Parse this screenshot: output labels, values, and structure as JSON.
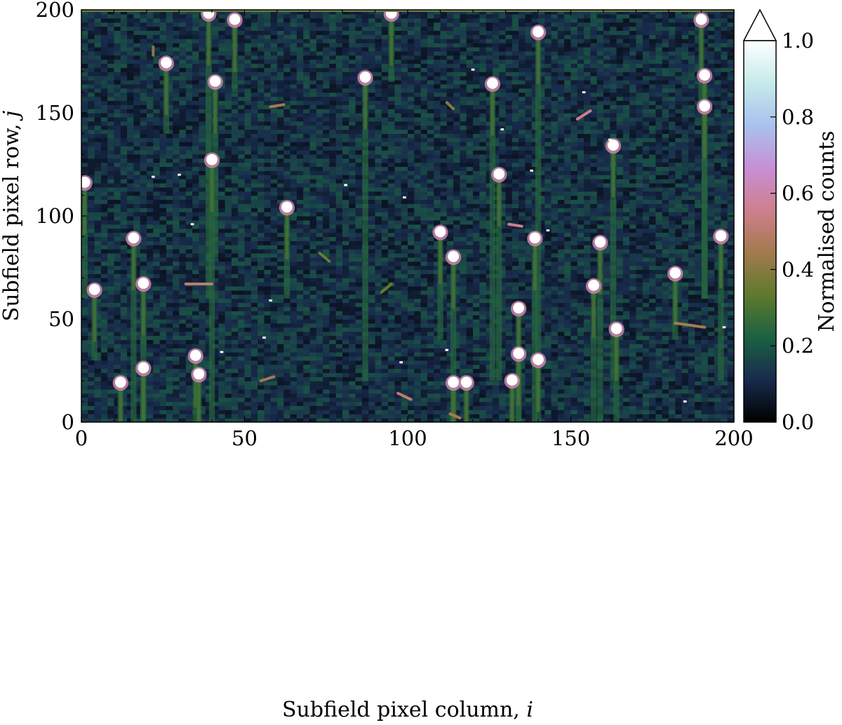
{
  "chart_data": {
    "type": "heatmap",
    "xlabel": "Subfield pixel column, ",
    "xlabel_var": "i",
    "ylabel": "Subfield pixel row, ",
    "ylabel_var": "j",
    "xlim": [
      0,
      200
    ],
    "ylim": [
      0,
      200
    ],
    "x_ticks": [
      0,
      50,
      100,
      150,
      200
    ],
    "y_ticks": [
      0,
      50,
      100,
      150,
      200
    ],
    "x_tick_labels": [
      "0",
      "50",
      "100",
      "150",
      "200"
    ],
    "y_tick_labels": [
      "0",
      "50",
      "100",
      "150",
      "200"
    ],
    "colorbar": {
      "label": "Normalised counts",
      "range": [
        0.0,
        1.0
      ],
      "extend": "max",
      "ticks": [
        0.0,
        0.2,
        0.4,
        0.6,
        0.8,
        1.0
      ],
      "tick_labels": [
        "0.0",
        "0.2",
        "0.4",
        "0.6",
        "0.8",
        "1.0"
      ],
      "colormap": "cubehelix",
      "colormap_stops": [
        "#000000",
        "#182b4c",
        "#1b6142",
        "#5e7a2c",
        "#a27a4d",
        "#cf7f8e",
        "#c78fd6",
        "#a8c2ee",
        "#c6eaea",
        "#ffffff"
      ]
    },
    "background_level": 0.12,
    "sources": [
      {
        "x": 39,
        "y": 198,
        "peak": 1.0,
        "streak_to": 60
      },
      {
        "x": 47,
        "y": 195,
        "peak": 1.0,
        "streak_to": 160
      },
      {
        "x": 95,
        "y": 198,
        "peak": 1.0,
        "streak_to": 165
      },
      {
        "x": 140,
        "y": 189,
        "peak": 1.0,
        "streak_to": 20
      },
      {
        "x": 190,
        "y": 195,
        "peak": 1.0,
        "streak_to": 150
      },
      {
        "x": 26,
        "y": 174,
        "peak": 1.0,
        "streak_to": 140
      },
      {
        "x": 41,
        "y": 165,
        "peak": 1.0,
        "streak_to": 80
      },
      {
        "x": 87,
        "y": 167,
        "peak": 1.0,
        "streak_to": 20
      },
      {
        "x": 126,
        "y": 164,
        "peak": 1.0,
        "streak_to": 20
      },
      {
        "x": 191,
        "y": 168,
        "peak": 1.0,
        "streak_to": 60
      },
      {
        "x": 191,
        "y": 153,
        "peak": 1.0,
        "streak_to": 60
      },
      {
        "x": 163,
        "y": 134,
        "peak": 1.0,
        "streak_to": 20
      },
      {
        "x": 40,
        "y": 127,
        "peak": 1.0,
        "streak_to": 0
      },
      {
        "x": 128,
        "y": 120,
        "peak": 1.0,
        "streak_to": 20
      },
      {
        "x": 1,
        "y": 116,
        "peak": 1.0,
        "streak_to": 60
      },
      {
        "x": 63,
        "y": 104,
        "peak": 1.0,
        "streak_to": 60
      },
      {
        "x": 16,
        "y": 89,
        "peak": 1.0,
        "streak_to": 0
      },
      {
        "x": 110,
        "y": 92,
        "peak": 1.0,
        "streak_to": 40
      },
      {
        "x": 139,
        "y": 89,
        "peak": 1.0,
        "streak_to": 0
      },
      {
        "x": 159,
        "y": 87,
        "peak": 1.0,
        "streak_to": 0
      },
      {
        "x": 196,
        "y": 90,
        "peak": 1.0,
        "streak_to": 20
      },
      {
        "x": 114,
        "y": 80,
        "peak": 1.0,
        "streak_to": 0
      },
      {
        "x": 182,
        "y": 72,
        "peak": 1.0,
        "streak_to": 40
      },
      {
        "x": 157,
        "y": 66,
        "peak": 1.0,
        "streak_to": 0
      },
      {
        "x": 19,
        "y": 67,
        "peak": 1.0,
        "streak_to": 0
      },
      {
        "x": 4,
        "y": 64,
        "peak": 1.0,
        "streak_to": 30
      },
      {
        "x": 134,
        "y": 55,
        "peak": 1.0,
        "streak_to": 0
      },
      {
        "x": 164,
        "y": 45,
        "peak": 1.0,
        "streak_to": 0
      },
      {
        "x": 35,
        "y": 32,
        "peak": 1.0,
        "streak_to": 0
      },
      {
        "x": 134,
        "y": 33,
        "peak": 1.0,
        "streak_to": 0
      },
      {
        "x": 140,
        "y": 30,
        "peak": 1.0,
        "streak_to": 0
      },
      {
        "x": 19,
        "y": 26,
        "peak": 1.0,
        "streak_to": 0
      },
      {
        "x": 36,
        "y": 23,
        "peak": 1.0,
        "streak_to": 0
      },
      {
        "x": 12,
        "y": 19,
        "peak": 1.0,
        "streak_to": 0
      },
      {
        "x": 114,
        "y": 19,
        "peak": 1.0,
        "streak_to": 0
      },
      {
        "x": 118,
        "y": 19,
        "peak": 1.0,
        "streak_to": 0
      },
      {
        "x": 132,
        "y": 20,
        "peak": 1.0,
        "streak_to": 0
      }
    ],
    "artifacts": [
      {
        "x1": 58,
        "y1": 153,
        "x2": 62,
        "y2": 154,
        "level": 0.45
      },
      {
        "x1": 112,
        "y1": 155,
        "x2": 114,
        "y2": 152,
        "level": 0.4
      },
      {
        "x1": 152,
        "y1": 147,
        "x2": 156,
        "y2": 151,
        "level": 0.55
      },
      {
        "x1": 32,
        "y1": 67,
        "x2": 40,
        "y2": 67,
        "level": 0.5
      },
      {
        "x1": 73,
        "y1": 82,
        "x2": 76,
        "y2": 78,
        "level": 0.35
      },
      {
        "x1": 55,
        "y1": 20,
        "x2": 59,
        "y2": 22,
        "level": 0.45
      },
      {
        "x1": 97,
        "y1": 14,
        "x2": 101,
        "y2": 11,
        "level": 0.5
      },
      {
        "x1": 182,
        "y1": 48,
        "x2": 191,
        "y2": 46,
        "level": 0.45
      },
      {
        "x1": 131,
        "y1": 96,
        "x2": 135,
        "y2": 95,
        "level": 0.55
      },
      {
        "x1": 92,
        "y1": 63,
        "x2": 95,
        "y2": 67,
        "level": 0.35
      },
      {
        "x1": 22,
        "y1": 182,
        "x2": 22,
        "y2": 178,
        "level": 0.4
      },
      {
        "x1": 113,
        "y1": 4,
        "x2": 116,
        "y2": 2,
        "level": 0.45
      }
    ],
    "hot_pixels": [
      {
        "x": 120,
        "y": 171
      },
      {
        "x": 154,
        "y": 160
      },
      {
        "x": 129,
        "y": 142
      },
      {
        "x": 162,
        "y": 137
      },
      {
        "x": 30,
        "y": 120
      },
      {
        "x": 22,
        "y": 119
      },
      {
        "x": 81,
        "y": 115
      },
      {
        "x": 99,
        "y": 109
      },
      {
        "x": 138,
        "y": 122
      },
      {
        "x": 34,
        "y": 96
      },
      {
        "x": 58,
        "y": 59
      },
      {
        "x": 56,
        "y": 41
      },
      {
        "x": 43,
        "y": 34
      },
      {
        "x": 98,
        "y": 29
      },
      {
        "x": 112,
        "y": 35
      },
      {
        "x": 185,
        "y": 10
      },
      {
        "x": 197,
        "y": 46
      },
      {
        "x": 143,
        "y": 93
      }
    ]
  }
}
